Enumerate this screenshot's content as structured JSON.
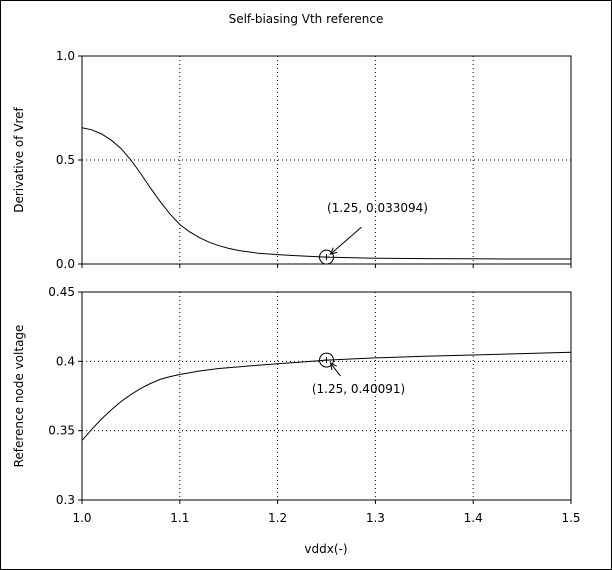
{
  "chart_data": [
    {
      "type": "line",
      "title": "Self-biasing Vth reference",
      "xlabel": "",
      "ylabel": "Derivative of Vref",
      "xlim": [
        1.0,
        1.5
      ],
      "ylim": [
        0.0,
        1.0
      ],
      "xticks": [
        1.0,
        1.1,
        1.2,
        1.3,
        1.4,
        1.5
      ],
      "xtick_labels": [
        "",
        "",
        "",
        "",
        "",
        ""
      ],
      "yticks": [
        0.0,
        0.5,
        1.0
      ],
      "ytick_labels": [
        "0.0",
        "0.5",
        "1.0"
      ],
      "grid": true,
      "series": [
        {
          "x": [
            1.0,
            1.01,
            1.02,
            1.03,
            1.04,
            1.05,
            1.06,
            1.07,
            1.08,
            1.09,
            1.1,
            1.11,
            1.12,
            1.13,
            1.14,
            1.15,
            1.16,
            1.18,
            1.2,
            1.22,
            1.25,
            1.3,
            1.35,
            1.4,
            1.45,
            1.5
          ],
          "y": [
            0.655,
            0.645,
            0.625,
            0.595,
            0.555,
            0.5,
            0.435,
            0.365,
            0.3,
            0.24,
            0.19,
            0.155,
            0.127,
            0.105,
            0.088,
            0.075,
            0.065,
            0.052,
            0.045,
            0.04,
            0.033094,
            0.028,
            0.026,
            0.025,
            0.024,
            0.024
          ]
        }
      ],
      "annotations": [
        {
          "x": 1.25,
          "y": 0.033094,
          "text": "(1.25, 0.033094)"
        }
      ]
    },
    {
      "type": "line",
      "title": "",
      "xlabel": "vddx(-)",
      "ylabel": "Reference node voltage",
      "xlim": [
        1.0,
        1.5
      ],
      "ylim": [
        0.3,
        0.45
      ],
      "xticks": [
        1.0,
        1.1,
        1.2,
        1.3,
        1.4,
        1.5
      ],
      "xtick_labels": [
        "1.0",
        "1.1",
        "1.2",
        "1.3",
        "1.4",
        "1.5"
      ],
      "yticks": [
        0.3,
        0.35,
        0.4,
        0.45
      ],
      "ytick_labels": [
        "0.3",
        "0.35",
        "0.4",
        "0.45"
      ],
      "grid": true,
      "series": [
        {
          "x": [
            1.0,
            1.01,
            1.02,
            1.03,
            1.04,
            1.05,
            1.06,
            1.07,
            1.08,
            1.09,
            1.1,
            1.12,
            1.14,
            1.16,
            1.18,
            1.2,
            1.22,
            1.25,
            1.3,
            1.35,
            1.4,
            1.45,
            1.5
          ],
          "y": [
            0.343,
            0.351,
            0.3585,
            0.365,
            0.371,
            0.376,
            0.3805,
            0.384,
            0.387,
            0.389,
            0.3905,
            0.393,
            0.3948,
            0.396,
            0.3972,
            0.3982,
            0.3992,
            0.40091,
            0.4025,
            0.4036,
            0.4046,
            0.4056,
            0.4066
          ]
        }
      ],
      "annotations": [
        {
          "x": 1.25,
          "y": 0.40091,
          "text": "(1.25, 0.40091)"
        }
      ]
    }
  ]
}
